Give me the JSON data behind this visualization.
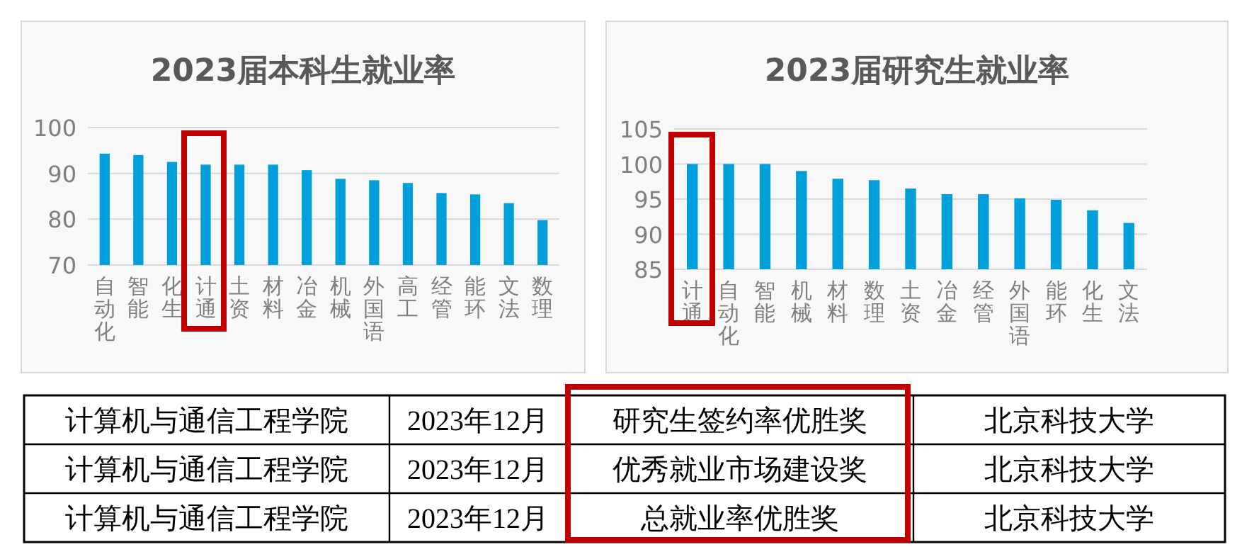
{
  "chart_data": [
    {
      "type": "bar",
      "title": "2023届本科生就业率",
      "categories": [
        "自动化",
        "智能",
        "化生",
        "计通",
        "土资",
        "材料",
        "冶金",
        "机械",
        "外国语",
        "高工",
        "经管",
        "能环",
        "文法",
        "数理"
      ],
      "values": [
        94.3,
        94.0,
        92.5,
        91.9,
        91.9,
        91.9,
        90.7,
        88.8,
        88.5,
        87.9,
        85.7,
        85.4,
        83.5,
        79.8
      ],
      "color": "#009fda",
      "ylim": [
        70,
        100
      ],
      "yticks": [
        70,
        80,
        90,
        100
      ],
      "grid": "y"
    },
    {
      "type": "bar",
      "title": "2023届研究生就业率",
      "categories": [
        "计通",
        "自动化",
        "智能",
        "机械",
        "材料",
        "数理",
        "土资",
        "冶金",
        "经管",
        "外国语",
        "能环",
        "化生",
        "文法"
      ],
      "values": [
        100,
        100,
        100,
        99.0,
        97.9,
        97.7,
        96.5,
        95.7,
        95.7,
        95.1,
        94.9,
        93.4,
        91.6
      ],
      "color": "#009fda",
      "ylim": [
        85,
        105
      ],
      "yticks": [
        85,
        90,
        95,
        100,
        105
      ],
      "grid": "y"
    },
    {
      "type": "other",
      "annotations": [
        "计算机与通信工程学院",
        "2023年12月",
        "研究生签约率优胜奖",
        "北京科技大学",
        "计算机与通信工程学院",
        "2023年12月",
        "优秀就业市场建设奖",
        "北京科技大学",
        "计算机与通信工程学院",
        "2023年12月",
        "总就业率优胜奖",
        "北京科技大学"
      ]
    }
  ]
}
